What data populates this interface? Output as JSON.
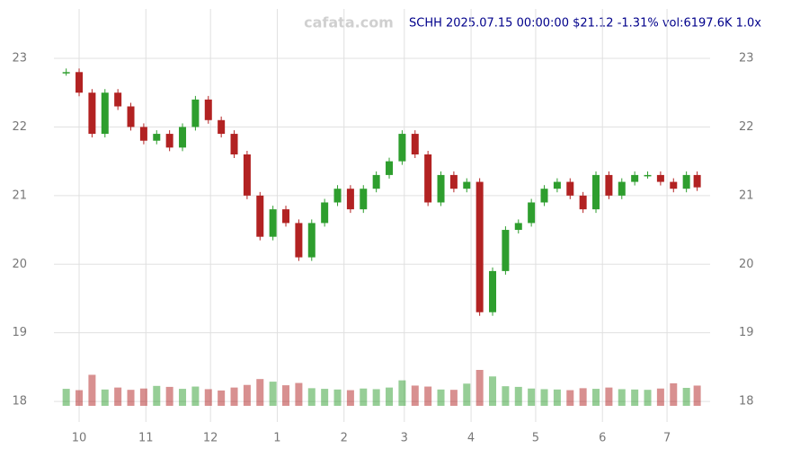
{
  "chart_data": {
    "type": "candlestick",
    "watermark": "cafata.com",
    "title": "SCHH 2025.07.15 00:00:00 $21.12 -1.31% vol:6197.6K 1.0x",
    "x": [
      -6,
      0,
      6,
      12,
      18,
      24,
      30,
      36,
      42,
      48,
      54,
      60,
      66,
      72,
      78,
      84,
      90,
      96,
      102,
      108,
      114,
      120,
      126,
      132,
      138,
      144,
      150,
      156,
      162,
      168,
      174,
      180,
      186,
      192,
      198,
      204,
      210,
      216,
      222,
      228,
      234,
      240,
      246,
      252,
      258,
      264,
      270,
      276,
      282,
      287
    ],
    "series": [
      {
        "name": "close",
        "values": [
          22.8,
          22.5,
          21.9,
          22.5,
          22.3,
          22.0,
          21.8,
          21.9,
          21.7,
          22.0,
          22.4,
          22.1,
          21.9,
          21.6,
          21.0,
          20.4,
          20.8,
          20.6,
          20.1,
          20.6,
          20.9,
          21.1,
          20.8,
          21.1,
          21.3,
          21.5,
          21.9,
          21.6,
          20.9,
          21.3,
          21.1,
          21.2,
          19.3,
          19.9,
          20.5,
          20.6,
          20.9,
          21.1,
          21.2,
          21.0,
          20.8,
          21.3,
          21.0,
          21.2,
          21.3,
          21.3,
          21.2,
          21.1,
          21.3,
          21.12
        ]
      },
      {
        "name": "volume",
        "values": [
          5200,
          4800,
          9500,
          5000,
          5600,
          4900,
          5300,
          6100,
          5800,
          5200,
          5900,
          5100,
          4700,
          5600,
          6400,
          8200,
          7400,
          6300,
          7000,
          5400,
          5200,
          5000,
          4800,
          5300,
          5100,
          5600,
          7800,
          6200,
          5900,
          5000,
          4900,
          6800,
          11000,
          9000,
          6000,
          5800,
          5300,
          5100,
          5000,
          4800,
          5400,
          5200,
          5600,
          5100,
          5000,
          4900,
          5300,
          6900,
          5500,
          6197.6
        ]
      }
    ],
    "up_color": "#2e9e2e",
    "down_color": "#b22222",
    "ylim": [
      17.7,
      23.72
    ],
    "yticks": [
      18,
      19,
      20,
      21,
      22,
      23
    ],
    "xlim": [
      -11.7,
      293
    ],
    "xticks": [
      {
        "value": 0,
        "label": "10"
      },
      {
        "value": 31,
        "label": "11"
      },
      {
        "value": 61,
        "label": "12"
      },
      {
        "value": 92,
        "label": "1"
      },
      {
        "value": 123,
        "label": "2"
      },
      {
        "value": 151,
        "label": "3"
      },
      {
        "value": 182,
        "label": "4"
      },
      {
        "value": 212,
        "label": "5"
      },
      {
        "value": 243,
        "label": "6"
      },
      {
        "value": 273,
        "label": "7"
      }
    ],
    "grid": true
  }
}
